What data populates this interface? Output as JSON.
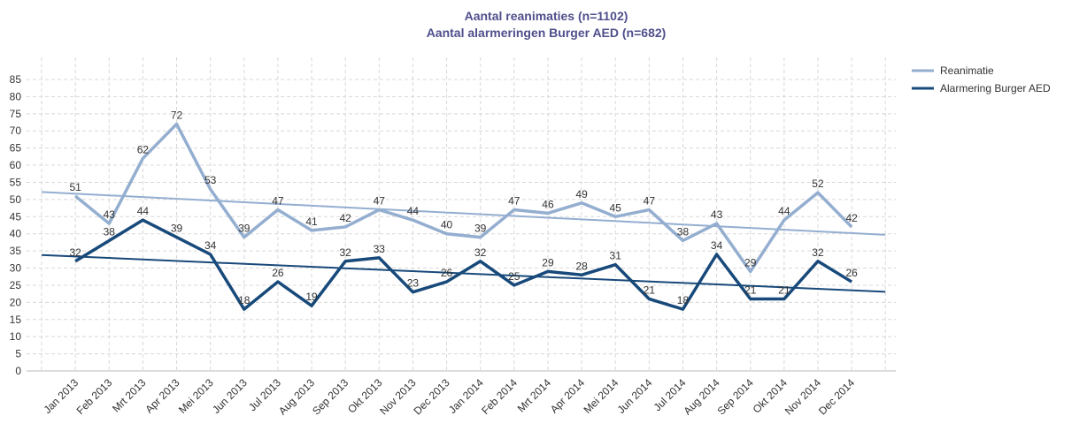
{
  "chart_data": {
    "type": "line",
    "title": "Aantal reanimaties (n=1102)",
    "subtitle": "Aantal alarmeringen Burger AED (n=682)",
    "categories": [
      "Jan 2013",
      "Feb 2013",
      "Mrt 2013",
      "Apr 2013",
      "Mei 2013",
      "Jun 2013",
      "Jul 2013",
      "Aug 2013",
      "Sep 2013",
      "Okt 2013",
      "Nov 2013",
      "Dec 2013",
      "Jan 2014",
      "Feb 2014",
      "Mrt 2014",
      "Apr 2014",
      "Mei 2014",
      "Jun 2014",
      "Jul 2014",
      "Aug 2014",
      "Sep 2014",
      "Okt 2014",
      "Nov 2014",
      "Dec 2014"
    ],
    "series": [
      {
        "name": "Reanimatie",
        "color": "#94aed0",
        "trend": [
          52.2,
          39.7
        ],
        "values": [
          51,
          43,
          62,
          72,
          53,
          39,
          47,
          41,
          42,
          47,
          44,
          40,
          39,
          47,
          46,
          49,
          45,
          47,
          38,
          43,
          29,
          44,
          52,
          42
        ]
      },
      {
        "name": "Alarmering Burger AED",
        "color": "#17497a",
        "trend": [
          33.8,
          23.1
        ],
        "values": [
          32,
          38,
          44,
          39,
          34,
          18,
          26,
          19,
          32,
          33,
          23,
          26,
          32,
          25,
          29,
          28,
          31,
          21,
          18,
          34,
          21,
          21,
          32,
          26
        ]
      }
    ],
    "ylim": [
      0,
      85
    ],
    "yticks": [
      0,
      5,
      10,
      15,
      20,
      25,
      30,
      35,
      40,
      45,
      50,
      55,
      60,
      65,
      70,
      75,
      80,
      85
    ],
    "grid": true,
    "legend": "right"
  }
}
